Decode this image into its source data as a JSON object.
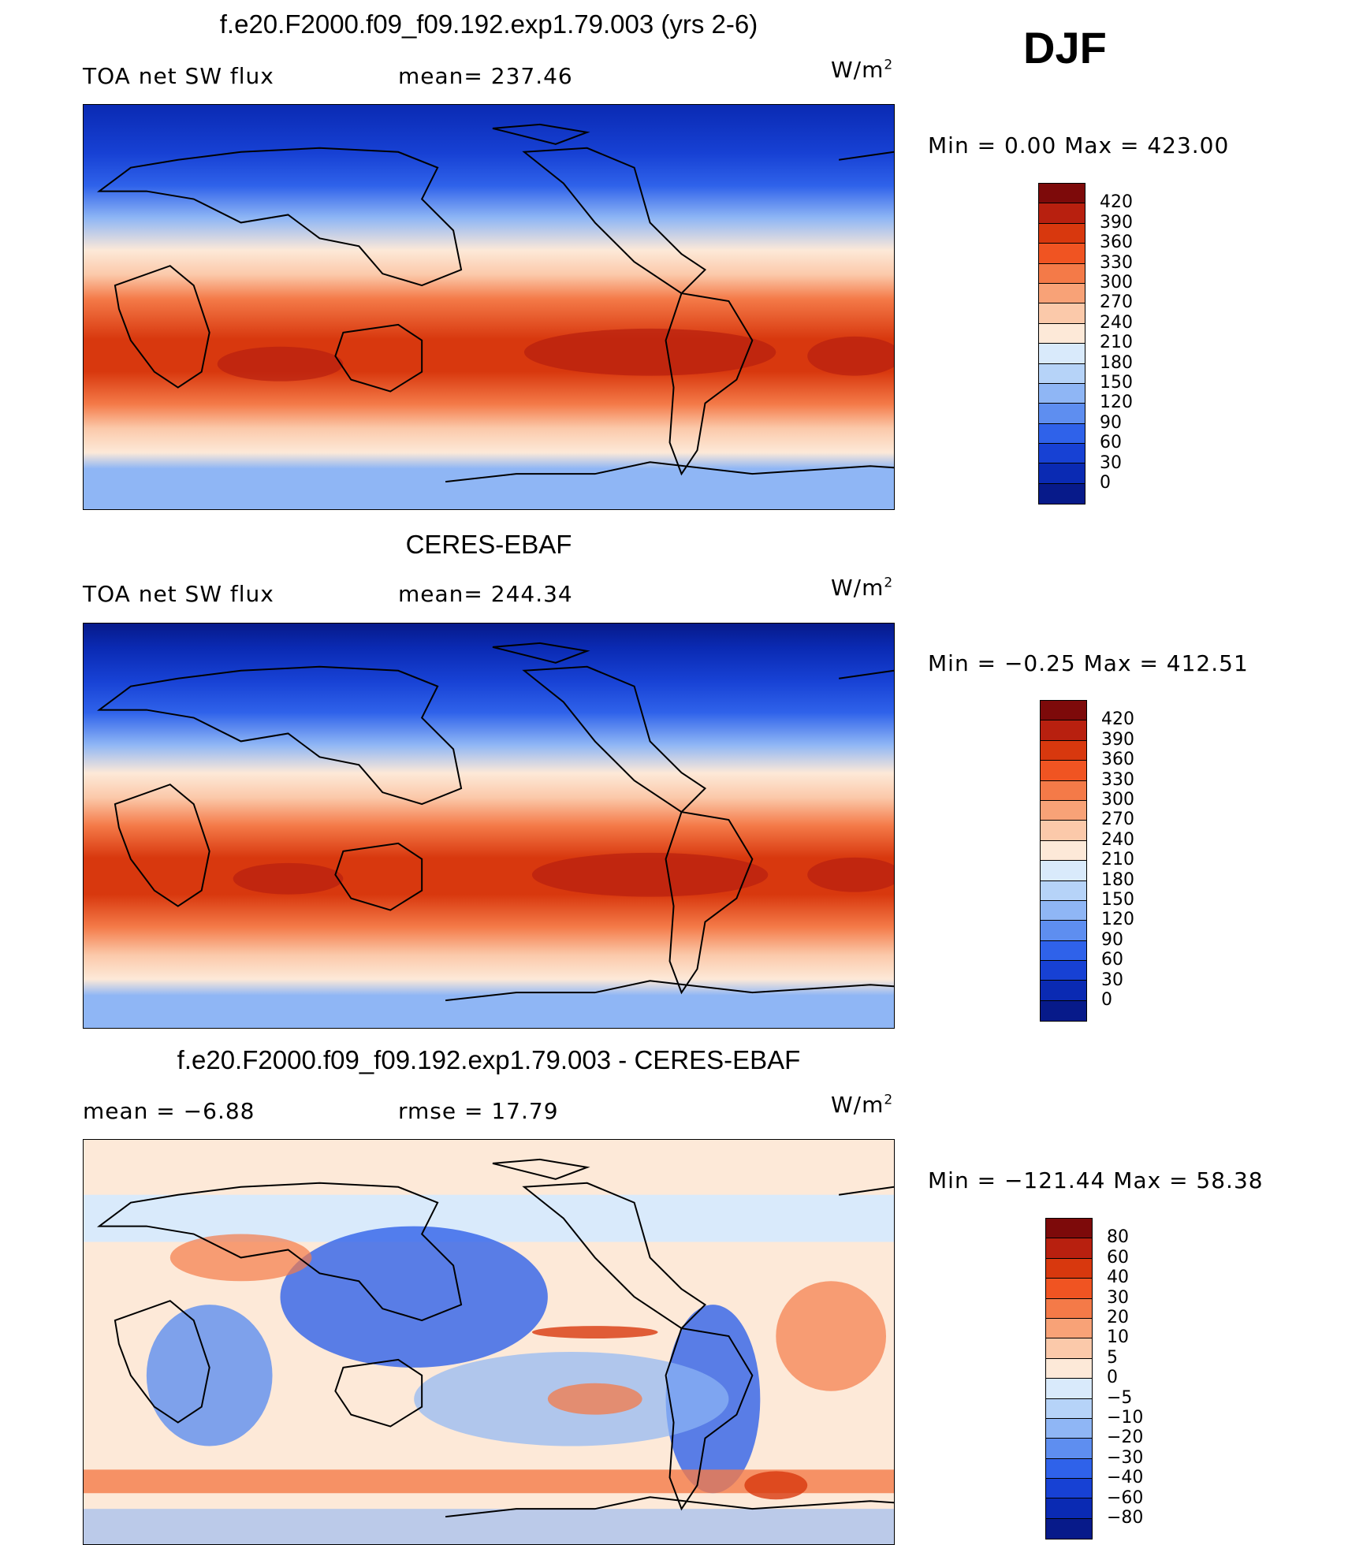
{
  "season": "DJF",
  "units": {
    "base": "W/m",
    "exp": "2"
  },
  "panels": [
    {
      "title": "f.e20.F2000.f09_f09.192.exp1.79.003 (yrs 2-6)",
      "left_label": "TOA net SW flux",
      "stat_label": "mean= 237.46",
      "minmax": "Min =    0.00 Max = 423.00",
      "colorbar": {
        "labels": [
          "420",
          "390",
          "360",
          "330",
          "300",
          "270",
          "240",
          "210",
          "180",
          "150",
          "120",
          "90",
          "60",
          "30",
          "0"
        ],
        "colors": [
          "#7d0a0a",
          "#b8200f",
          "#d8380e",
          "#f05422",
          "#f47a48",
          "#f8a277",
          "#fbc9aa",
          "#fde9d8",
          "#d9eafb",
          "#b6d3f8",
          "#8fb6f5",
          "#5e8ef0",
          "#2f62ea",
          "#1741d4",
          "#0a2ab3",
          "#071a8a"
        ]
      }
    },
    {
      "title": "CERES-EBAF",
      "left_label": "TOA net SW flux",
      "stat_label": "mean= 244.34",
      "minmax": "Min =  −0.25 Max = 412.51",
      "colorbar": {
        "labels": [
          "420",
          "390",
          "360",
          "330",
          "300",
          "270",
          "240",
          "210",
          "180",
          "150",
          "120",
          "90",
          "60",
          "30",
          "0"
        ],
        "colors": [
          "#7d0a0a",
          "#b8200f",
          "#d8380e",
          "#f05422",
          "#f47a48",
          "#f8a277",
          "#fbc9aa",
          "#fde9d8",
          "#d9eafb",
          "#b6d3f8",
          "#8fb6f5",
          "#5e8ef0",
          "#2f62ea",
          "#1741d4",
          "#0a2ab3",
          "#071a8a"
        ]
      }
    },
    {
      "title": "f.e20.F2000.f09_f09.192.exp1.79.003 - CERES-EBAF",
      "left_label": "mean =    −6.88",
      "stat_label": "rmse =    17.79",
      "minmax": "Min = −121.44 Max =   58.38",
      "colorbar": {
        "labels": [
          "80",
          "60",
          "40",
          "30",
          "20",
          "10",
          "5",
          "0",
          "−5",
          "−10",
          "−20",
          "−30",
          "−40",
          "−60",
          "−80"
        ],
        "colors": [
          "#7d0a0a",
          "#b8200f",
          "#d8380e",
          "#f05422",
          "#f47a48",
          "#f8a277",
          "#fbc9aa",
          "#fde9d8",
          "#d9eafb",
          "#b6d3f8",
          "#8fb6f5",
          "#5e8ef0",
          "#2f62ea",
          "#1741d4",
          "#0a2ab3",
          "#071a8a"
        ]
      }
    }
  ]
}
